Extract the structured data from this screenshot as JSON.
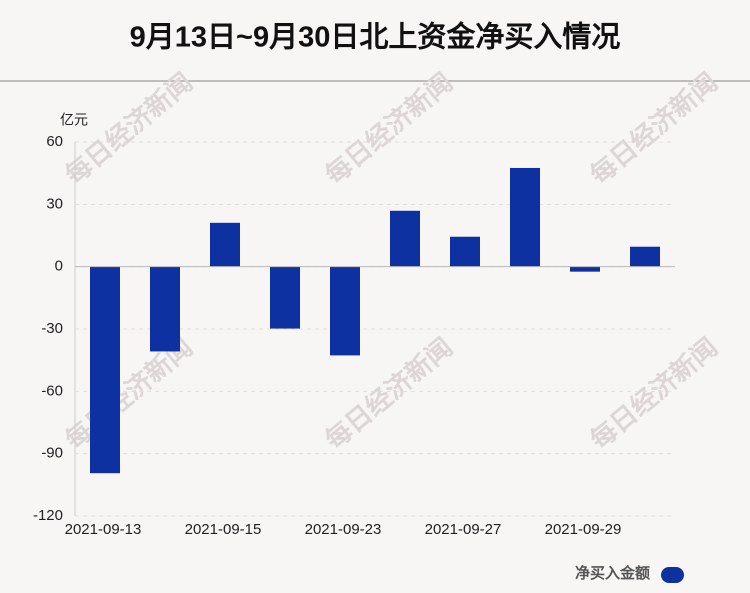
{
  "chart_data": {
    "type": "bar",
    "title": "9月13日~9月30日北上资金净买入情况",
    "y_label": "亿元",
    "categories": [
      "2021-09-13",
      null,
      "2021-09-15",
      null,
      "2021-09-23",
      null,
      "2021-09-27",
      null,
      "2021-09-29",
      null
    ],
    "series": [
      {
        "name": "净买入金额",
        "color": "#0d31a0",
        "values": [
          -99.4,
          -40.8,
          21.1,
          -29.8,
          -42.7,
          26.9,
          14.4,
          47.5,
          -2.4,
          9.6
        ]
      }
    ],
    "ylim": [
      -120,
      60
    ],
    "yticks": [
      -120,
      -90,
      -60,
      -30,
      0,
      30,
      60
    ],
    "grid": true,
    "watermark": "每日经济新闻"
  }
}
